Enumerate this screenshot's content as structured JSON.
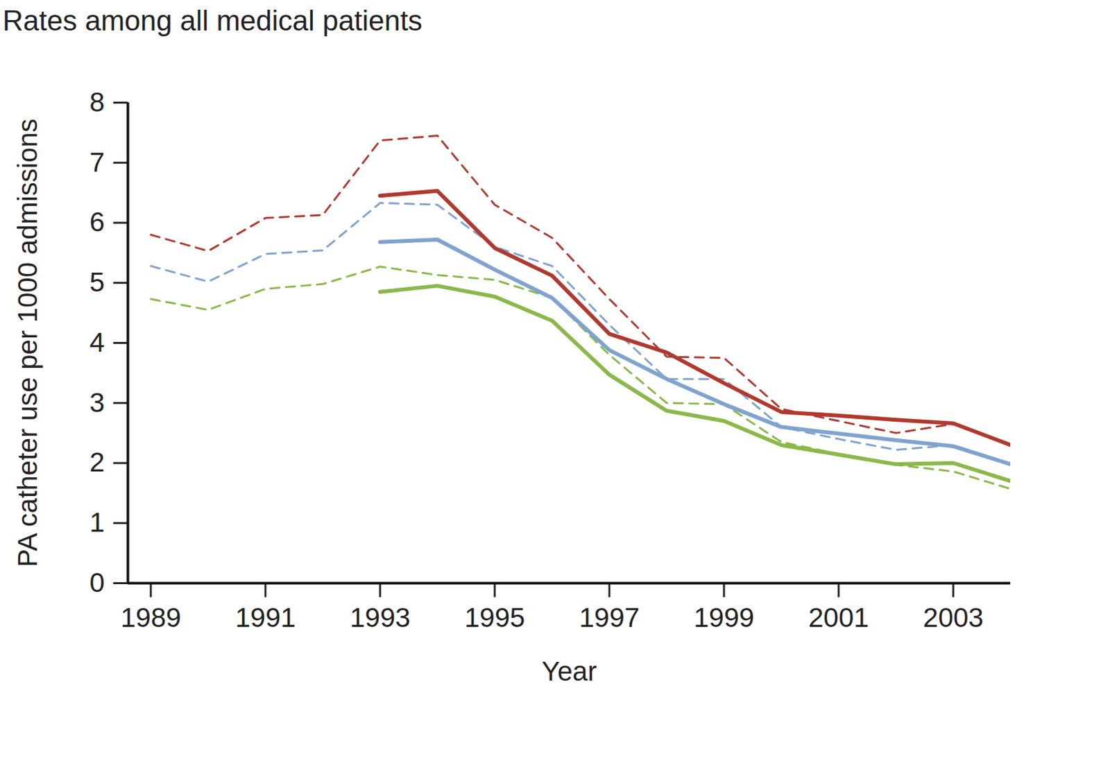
{
  "chart_data": {
    "type": "line",
    "title": "Rates among all medical patients",
    "x_label": "Year",
    "y_label": "PA catheter use per 1000 admissions",
    "x": [
      1989,
      1990,
      1991,
      1992,
      1993,
      1994,
      1995,
      1996,
      1997,
      1998,
      1999,
      2000,
      2001,
      2002,
      2003,
      2004
    ],
    "xlim": [
      1988.6,
      2004
    ],
    "xticks": [
      1989,
      1991,
      1993,
      1995,
      1997,
      1999,
      2001,
      2003
    ],
    "ylim": [
      0,
      8
    ],
    "yticks": [
      0,
      1,
      2,
      3,
      4,
      5,
      6,
      7,
      8
    ],
    "grid": false,
    "series": [
      {
        "color": "#b0392f",
        "line_style": "dashed",
        "values": [
          5.8,
          5.53,
          6.08,
          6.13,
          7.37,
          7.45,
          6.3,
          5.75,
          4.73,
          3.77,
          3.75,
          2.9,
          2.7,
          2.5,
          2.65,
          2.3
        ]
      },
      {
        "color": "#7fa3cf",
        "line_style": "dashed",
        "values": [
          5.28,
          5.02,
          5.48,
          5.54,
          6.33,
          6.3,
          5.6,
          5.28,
          4.3,
          3.4,
          3.4,
          2.6,
          2.4,
          2.22,
          2.3,
          1.98
        ]
      },
      {
        "color": "#8ab84a",
        "line_style": "dashed",
        "values": [
          4.73,
          4.55,
          4.9,
          4.98,
          5.27,
          5.13,
          5.05,
          4.75,
          3.8,
          3.0,
          2.98,
          2.35,
          2.15,
          1.97,
          1.86,
          1.57
        ]
      },
      {
        "color": "#b0392f",
        "line_style": "solid",
        "values": [
          null,
          null,
          null,
          null,
          6.45,
          6.53,
          5.58,
          5.12,
          4.15,
          3.84,
          3.33,
          2.85,
          2.79,
          2.72,
          2.66,
          2.3
        ]
      },
      {
        "color": "#7fa3cf",
        "line_style": "solid",
        "values": [
          null,
          null,
          null,
          null,
          5.68,
          5.72,
          5.22,
          4.75,
          3.88,
          3.4,
          2.98,
          2.6,
          2.49,
          2.38,
          2.28,
          1.98
        ]
      },
      {
        "color": "#8ab84a",
        "line_style": "solid",
        "values": [
          null,
          null,
          null,
          null,
          4.85,
          4.95,
          4.77,
          4.37,
          3.47,
          2.87,
          2.7,
          2.3,
          2.14,
          1.98,
          2.0,
          1.7
        ]
      }
    ]
  }
}
